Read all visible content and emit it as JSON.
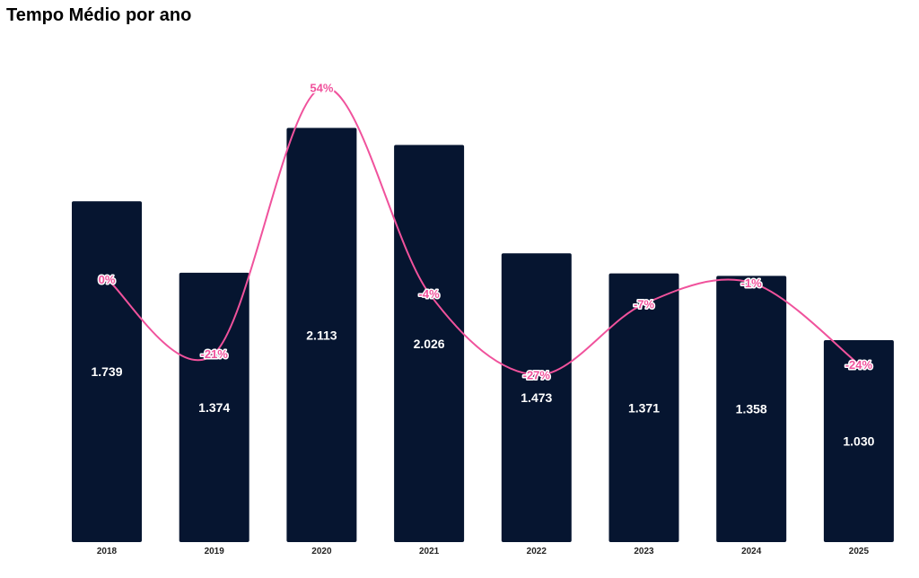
{
  "chart_data": {
    "type": "bar",
    "title": "Tempo Médio por ano",
    "categories": [
      "2018",
      "2019",
      "2020",
      "2021",
      "2022",
      "2023",
      "2024",
      "2025"
    ],
    "values": [
      1.739,
      1.374,
      2.113,
      2.026,
      1.473,
      1.371,
      1.358,
      1.03
    ],
    "value_labels": [
      "1.739",
      "1.374",
      "2.113",
      "2.026",
      "1.473",
      "1.371",
      "1.358",
      "1.030"
    ],
    "ylim": [
      0,
      2.5
    ],
    "grid": false,
    "line_series": {
      "type": "line",
      "smooth": true,
      "values": [
        0,
        -21,
        54,
        -4,
        -27,
        -7,
        -1,
        -24
      ],
      "labels": [
        "0%",
        "-21%",
        "54%",
        "-4%",
        "-27%",
        "-7%",
        "-1%",
        "-24%"
      ]
    },
    "colors": {
      "bar": "#061530",
      "line": "#f0529c"
    }
  }
}
